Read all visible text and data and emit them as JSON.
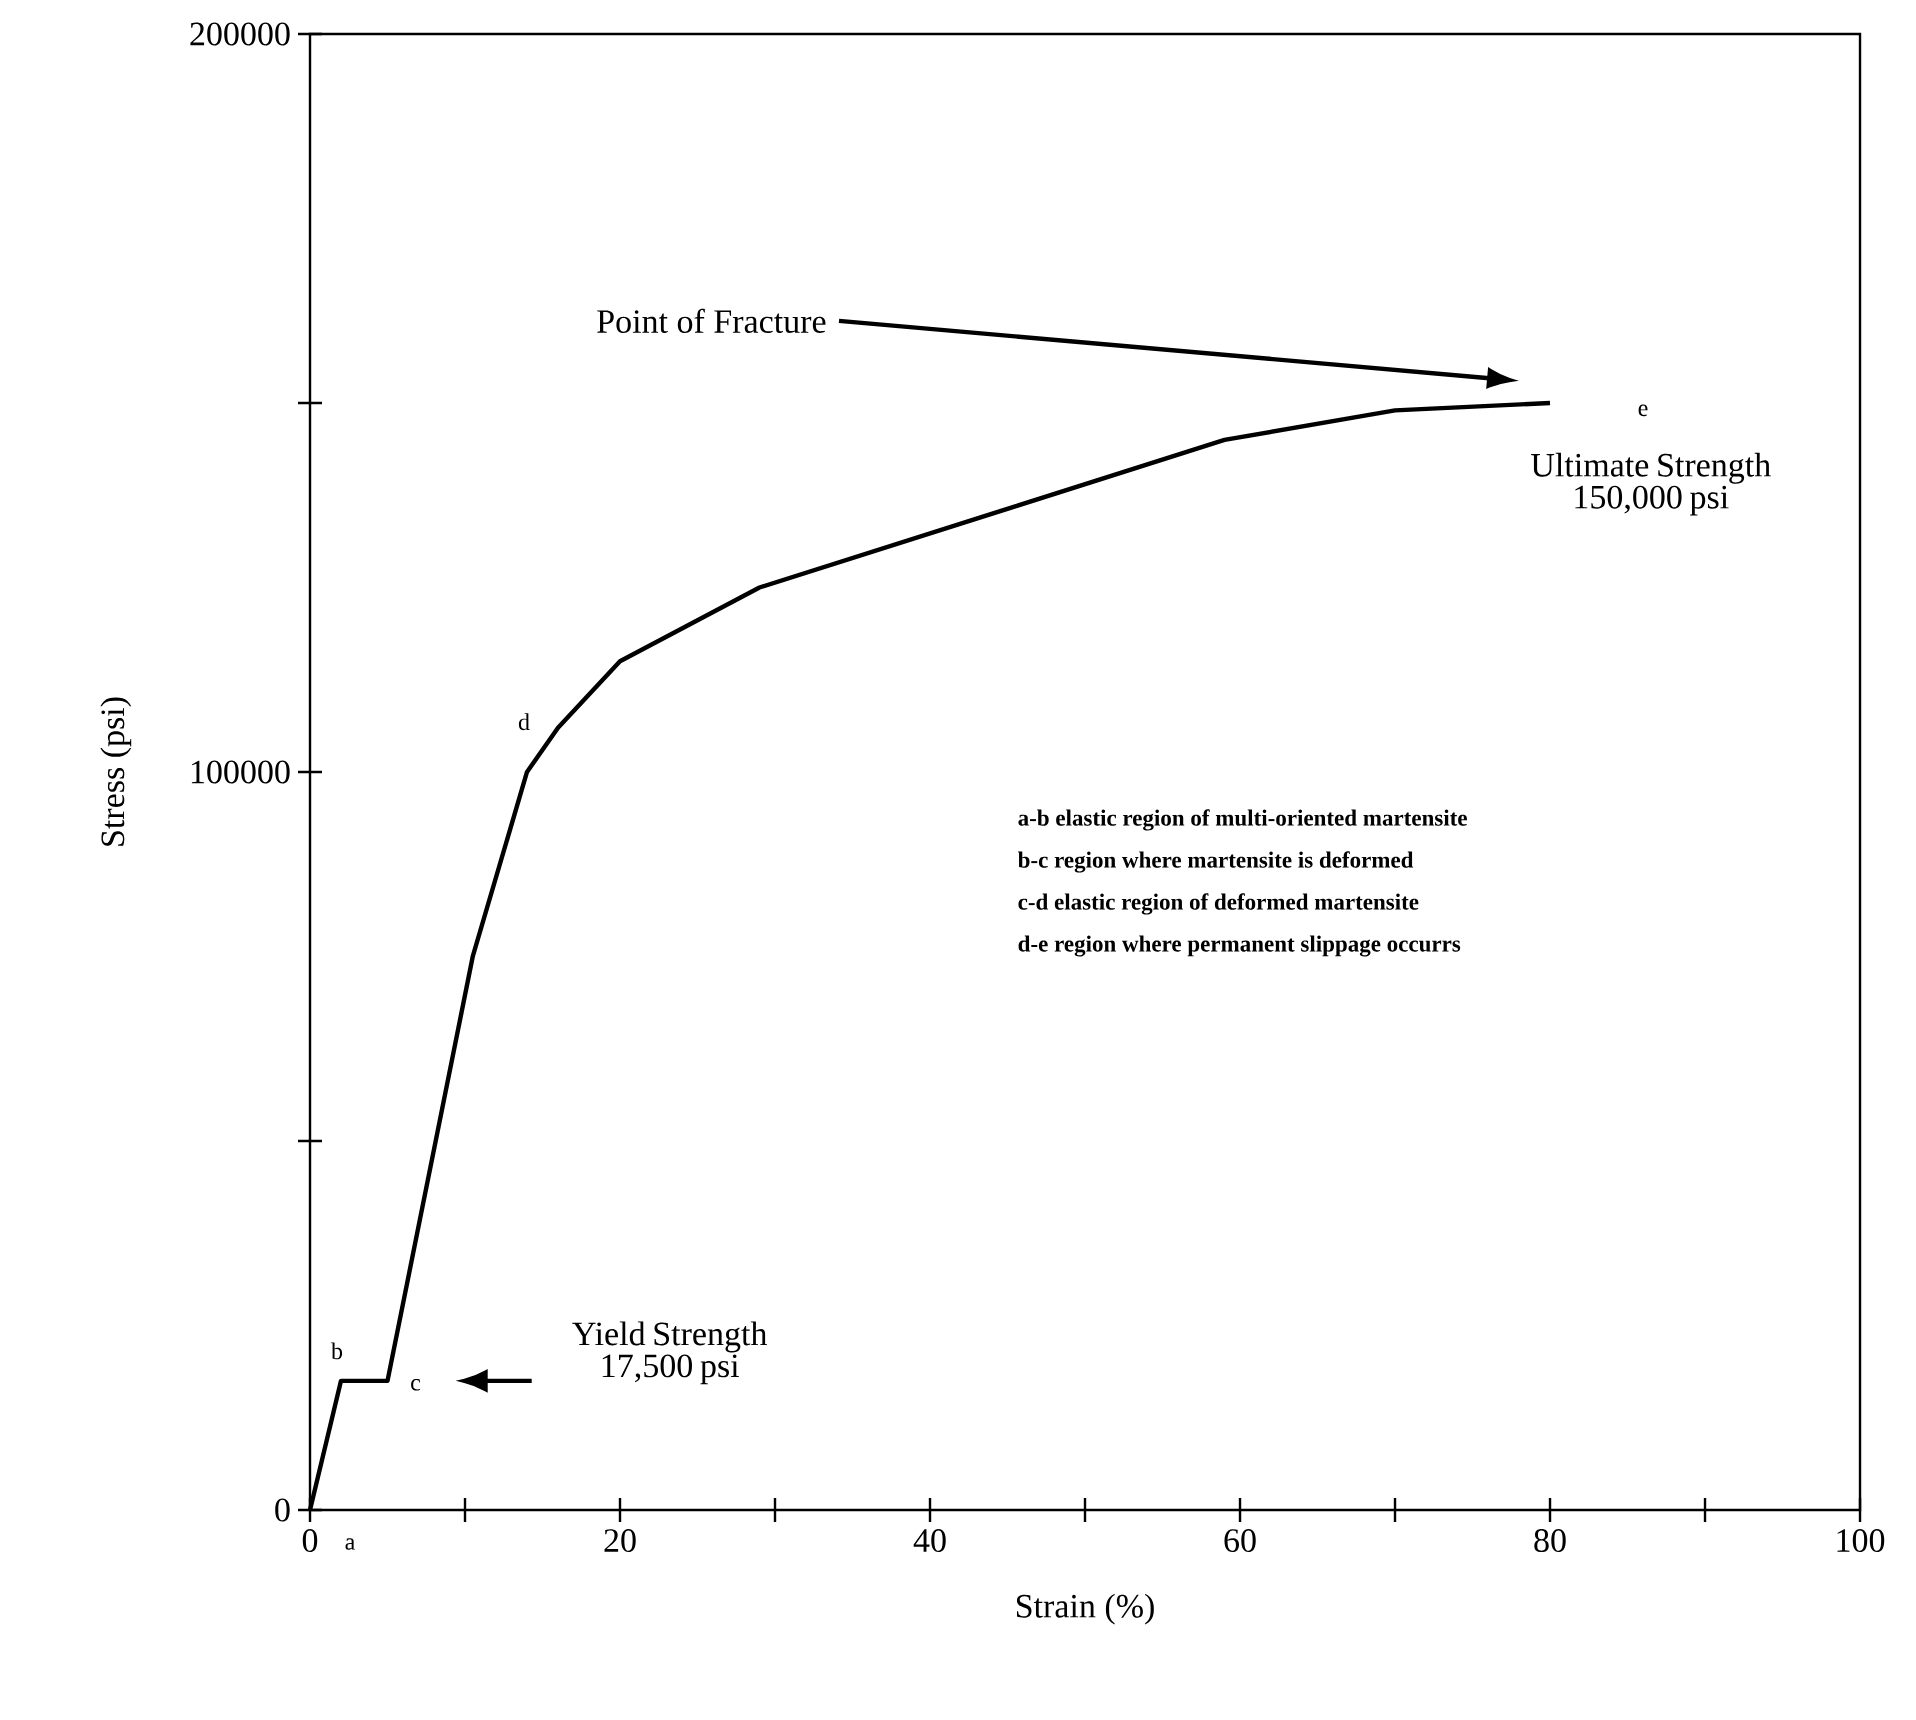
{
  "chart_data": {
    "type": "line",
    "xlabel": "Strain (%)",
    "ylabel": "Stress (psi)",
    "x": [
      0,
      2,
      5,
      10.5,
      14,
      16,
      20,
      29,
      45.5,
      59,
      70,
      80
    ],
    "series": [
      {
        "color": "#000000",
        "values": [
          0,
          17500,
          17500,
          75000,
          100000,
          106000,
          115000,
          125000,
          136000,
          145000,
          149000,
          150000
        ]
      }
    ],
    "xlim": [
      0,
      100
    ],
    "ylim": [
      0,
      200000
    ],
    "xticks": [
      0,
      {
        "value": 10,
        "label": null
      },
      20,
      {
        "value": 30,
        "label": null
      },
      40,
      {
        "value": 50,
        "label": null
      },
      60,
      {
        "value": 70,
        "label": null
      },
      80,
      {
        "value": 90,
        "label": null
      },
      100
    ],
    "yticks": [
      0,
      {
        "value": 50000,
        "label": null
      },
      100000,
      {
        "value": 150000,
        "label": null
      },
      200000
    ],
    "annotations": [
      {
        "text": "a",
        "x": 0,
        "y": 0
      },
      {
        "text": "b",
        "x": 2,
        "y": 17500
      },
      {
        "text": "c",
        "x": 5,
        "y": 17500
      },
      {
        "text": "d",
        "x": 16,
        "y": 106000
      },
      "e",
      "Point of Fracture",
      "Ultimate Strength 150,000 psi",
      "Yield Strength 17,500 psi",
      "a-b  elastic region of multi-oriented martensite",
      "b-c  region where martensite is deformed",
      "c-d  elastic region of deformed martensite",
      "d-e  region where permanent slippage occurrs"
    ]
  }
}
